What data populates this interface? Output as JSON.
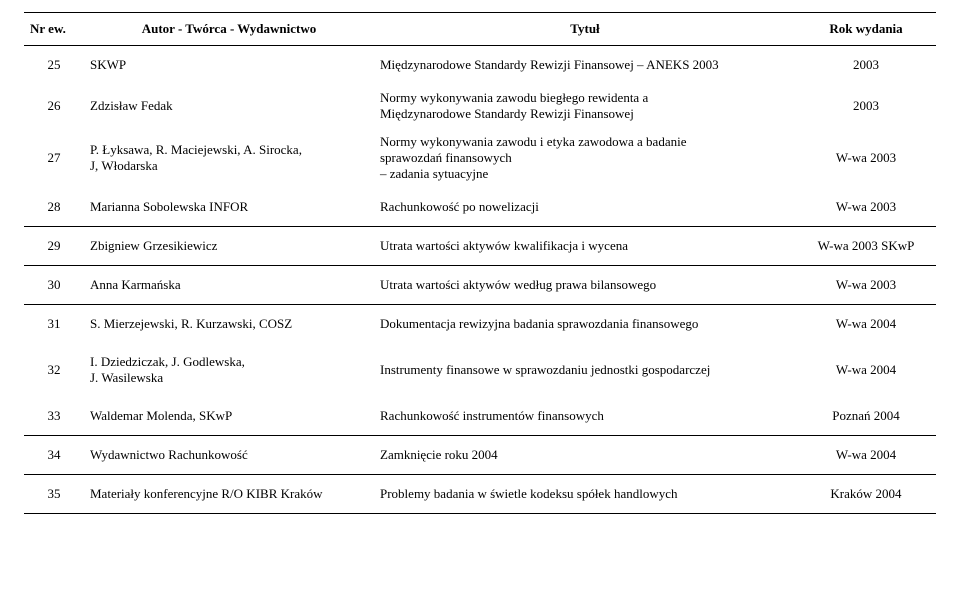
{
  "headers": {
    "c0": "Nr ew.",
    "c1": "Autor - Twórca - Wydawnictwo",
    "c2": "Tytuł",
    "c3": "Rok wydania"
  },
  "rows": [
    {
      "n": "25",
      "author": "SKWP",
      "title": "Międzynarodowe Standardy Rewizji Finansowej – ANEKS 2003",
      "year": "2003",
      "sep": false,
      "thin": false
    },
    {
      "n": "26",
      "author": "Zdzisław Fedak",
      "title": "Normy wykonywania zawodu biegłego rewidenta a\nMiędzynarodowe Standardy Rewizji Finansowej",
      "year": "2003",
      "sep": false,
      "thin": true
    },
    {
      "n": "27",
      "author": "P. Łyksawa, R. Maciejewski, A. Sirocka,\nJ, Włodarska",
      "title": "Normy wykonywania zawodu i etyka zawodowa a badanie\nsprawozdań finansowych\n– zadania sytuacyjne",
      "year": "W-wa 2003",
      "sep": false,
      "thin": true
    },
    {
      "n": "28",
      "author": "Marianna Sobolewska  INFOR",
      "title": "Rachunkowość po nowelizacji",
      "year": "W-wa 2003",
      "sep": true,
      "thin": false
    },
    {
      "n": "29",
      "author": "Zbigniew Grzesikiewicz",
      "title": "Utrata wartości aktywów kwalifikacja i wycena",
      "year": "W-wa 2003 SKwP",
      "sep": true,
      "thin": false
    },
    {
      "n": "30",
      "author": "Anna Karmańska",
      "title": "Utrata wartości aktywów według prawa bilansowego",
      "year": "W-wa 2003",
      "sep": true,
      "thin": false
    },
    {
      "n": "31",
      "author": "S. Mierzejewski, R. Kurzawski, COSZ",
      "title": "Dokumentacja rewizyjna badania sprawozdania finansowego",
      "year": "W-wa 2004",
      "sep": false,
      "thin": false
    },
    {
      "n": "32",
      "author": "I. Dziedziczak, J. Godlewska,\nJ. Wasilewska",
      "title": "Instrumenty finansowe w sprawozdaniu jednostki gospodarczej",
      "year": "W-wa 2004",
      "sep": false,
      "thin": false
    },
    {
      "n": "33",
      "author": "Waldemar Molenda, SKwP",
      "title": "Rachunkowość instrumentów finansowych",
      "year": "Poznań 2004",
      "sep": true,
      "thin": false
    },
    {
      "n": "34",
      "author": "Wydawnictwo Rachunkowość",
      "title": "Zamknięcie roku 2004",
      "year": "W-wa 2004",
      "sep": true,
      "thin": false
    },
    {
      "n": "35",
      "author": "Materiały konferencyjne R/O KIBR Kraków",
      "title": "Problemy badania w świetle kodeksu spółek handlowych",
      "year": "Kraków 2004",
      "sep": true,
      "thin": false
    }
  ]
}
